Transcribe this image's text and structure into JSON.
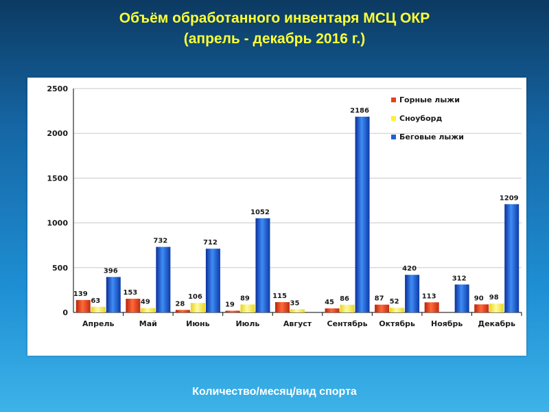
{
  "page": {
    "title_line1": "Объём обработанного инвентаря МСЦ ОКР",
    "title_line2": "(апрель - декабрь 2016 г.)",
    "caption": "Количество/месяц/вид спорта"
  },
  "colors": {
    "title": "#ffff33",
    "caption": "#ffffff"
  },
  "chart_data": {
    "type": "bar",
    "categories": [
      "Апрель",
      "Май",
      "Июнь",
      "Июль",
      "Август",
      "Сентябрь",
      "Октябрь",
      "Ноябрь",
      "Декабрь"
    ],
    "series": [
      {
        "name": "Горные лыжи",
        "color": "#e8401c",
        "values": [
          139,
          153,
          28,
          19,
          115,
          45,
          87,
          113,
          90
        ]
      },
      {
        "name": "Сноуборд",
        "color": "#ffee33",
        "values": [
          63,
          49,
          106,
          89,
          35,
          86,
          52,
          null,
          98
        ]
      },
      {
        "name": "Беговые лыжи",
        "color": "#1f5fd6",
        "values": [
          396,
          732,
          712,
          1052,
          null,
          2186,
          420,
          312,
          1209
        ]
      }
    ],
    "yticks": [
      0,
      500,
      1000,
      1500,
      2000,
      2500
    ],
    "ylim": [
      0,
      2500
    ],
    "legend_position": "top-right",
    "grid": true
  }
}
